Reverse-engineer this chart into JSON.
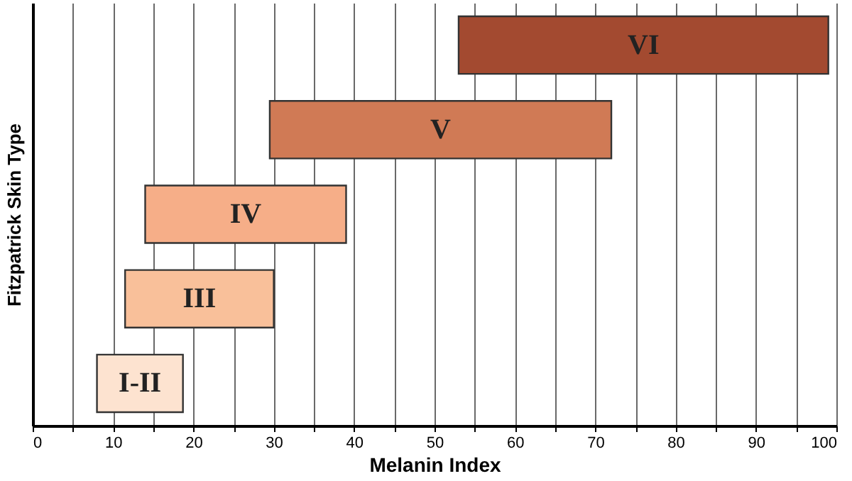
{
  "chart_data": {
    "type": "bar",
    "orientation": "horizontal",
    "xlabel": "Melanin Index",
    "ylabel": "Fitzpatrick Skin Type",
    "categories": [
      "VI",
      "V",
      "IV",
      "III",
      "I-II"
    ],
    "base": [
      53,
      29.5,
      14,
      11.5,
      8
    ],
    "values": [
      46,
      42.5,
      25,
      18.5,
      10.7
    ],
    "colors": [
      "#a34a30",
      "#d07a55",
      "#f6ae88",
      "#f9c09a",
      "#fde3d0"
    ],
    "xlim": [
      0,
      100
    ],
    "xticks": [
      0,
      {
        "value": 5,
        "label": null
      },
      10,
      {
        "value": 15,
        "label": null
      },
      20,
      {
        "value": 25,
        "label": null
      },
      30,
      {
        "value": 35,
        "label": null
      },
      40,
      {
        "value": 45,
        "label": null
      },
      50,
      {
        "value": 55,
        "label": null
      },
      60,
      {
        "value": 65,
        "label": null
      },
      70,
      {
        "value": 75,
        "label": null
      },
      80,
      {
        "value": 85,
        "label": null
      },
      90,
      {
        "value": 95,
        "label": null
      },
      100
    ],
    "grid": "x",
    "tick_labels": "x"
  }
}
